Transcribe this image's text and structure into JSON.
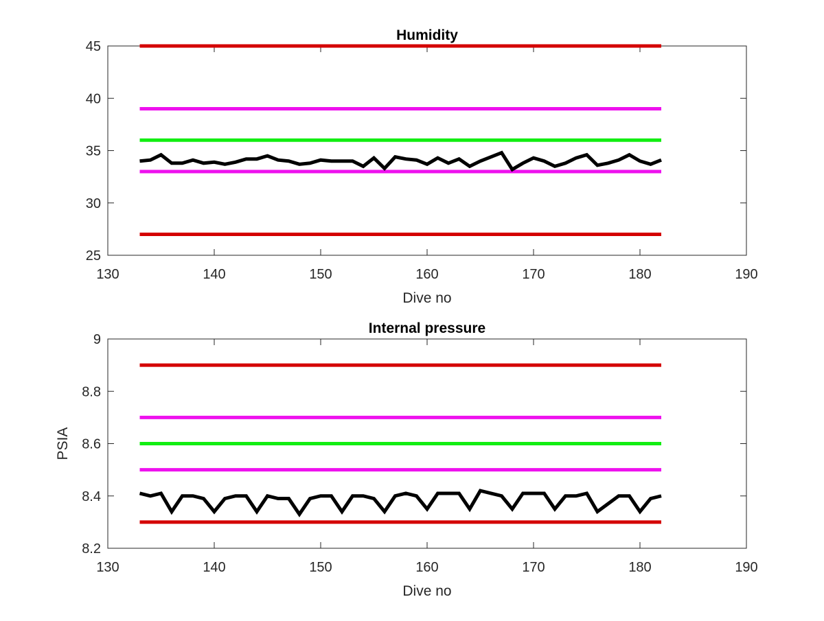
{
  "chart_data": [
    {
      "type": "line",
      "title": "Humidity",
      "xlabel": "Dive no",
      "ylabel": "",
      "xlim": [
        130,
        190
      ],
      "ylim": [
        25,
        45
      ],
      "xticks": [
        130,
        140,
        150,
        160,
        170,
        180,
        190
      ],
      "yticks": [
        25,
        30,
        35,
        40,
        45
      ],
      "grid": false,
      "thresholds": [
        {
          "value": 45,
          "color": "#d40000",
          "x_range": [
            133,
            182
          ]
        },
        {
          "value": 39,
          "color": "#ee11ee",
          "x_range": [
            133,
            182
          ]
        },
        {
          "value": 36,
          "color": "#11ee11",
          "x_range": [
            133,
            182
          ]
        },
        {
          "value": 33,
          "color": "#ee11ee",
          "x_range": [
            133,
            182
          ]
        },
        {
          "value": 27,
          "color": "#d40000",
          "x_range": [
            133,
            182
          ]
        }
      ],
      "series": [
        {
          "color": "#000000",
          "x": [
            133,
            134,
            135,
            136,
            137,
            138,
            139,
            140,
            141,
            142,
            143,
            144,
            145,
            146,
            147,
            148,
            149,
            150,
            151,
            152,
            153,
            154,
            155,
            156,
            157,
            158,
            159,
            160,
            161,
            162,
            163,
            164,
            165,
            166,
            167,
            168,
            169,
            170,
            171,
            172,
            173,
            174,
            175,
            176,
            177,
            178,
            179,
            180,
            181,
            182
          ],
          "y": [
            34.0,
            34.1,
            34.6,
            33.8,
            33.8,
            34.1,
            33.8,
            33.9,
            33.7,
            33.9,
            34.2,
            34.2,
            34.5,
            34.1,
            34.0,
            33.7,
            33.8,
            34.1,
            34.0,
            34.0,
            34.0,
            33.5,
            34.3,
            33.3,
            34.4,
            34.2,
            34.1,
            33.7,
            34.3,
            33.8,
            34.2,
            33.5,
            34.0,
            34.4,
            34.8,
            33.2,
            33.8,
            34.3,
            34.0,
            33.5,
            33.8,
            34.3,
            34.6,
            33.6,
            33.8,
            34.1,
            34.6,
            34.0,
            33.7,
            34.1
          ]
        }
      ]
    },
    {
      "type": "line",
      "title": "Internal pressure",
      "xlabel": "Dive no",
      "ylabel": "PSIA",
      "xlim": [
        130,
        190
      ],
      "ylim": [
        8.2,
        9
      ],
      "xticks": [
        130,
        140,
        150,
        160,
        170,
        180,
        190
      ],
      "yticks": [
        8.2,
        8.4,
        8.6,
        8.8,
        9
      ],
      "ytick_labels": [
        "8.2",
        "8.4",
        "8.6",
        "8.8",
        "9"
      ],
      "grid": false,
      "thresholds": [
        {
          "value": 8.9,
          "color": "#d40000",
          "x_range": [
            133,
            182
          ]
        },
        {
          "value": 8.7,
          "color": "#ee11ee",
          "x_range": [
            133,
            182
          ]
        },
        {
          "value": 8.6,
          "color": "#11ee11",
          "x_range": [
            133,
            182
          ]
        },
        {
          "value": 8.5,
          "color": "#ee11ee",
          "x_range": [
            133,
            182
          ]
        },
        {
          "value": 8.3,
          "color": "#d40000",
          "x_range": [
            133,
            182
          ]
        }
      ],
      "series": [
        {
          "color": "#000000",
          "x": [
            133,
            134,
            135,
            136,
            137,
            138,
            139,
            140,
            141,
            142,
            143,
            144,
            145,
            146,
            147,
            148,
            149,
            150,
            151,
            152,
            153,
            154,
            155,
            156,
            157,
            158,
            159,
            160,
            161,
            162,
            163,
            164,
            165,
            166,
            167,
            168,
            169,
            170,
            171,
            172,
            173,
            174,
            175,
            176,
            177,
            178,
            179,
            180,
            181,
            182
          ],
          "y": [
            8.41,
            8.4,
            8.41,
            8.34,
            8.4,
            8.4,
            8.39,
            8.34,
            8.39,
            8.4,
            8.4,
            8.34,
            8.4,
            8.39,
            8.39,
            8.33,
            8.39,
            8.4,
            8.4,
            8.34,
            8.4,
            8.4,
            8.39,
            8.34,
            8.4,
            8.41,
            8.4,
            8.35,
            8.41,
            8.41,
            8.41,
            8.35,
            8.42,
            8.41,
            8.4,
            8.35,
            8.41,
            8.41,
            8.41,
            8.35,
            8.4,
            8.4,
            8.41,
            8.34,
            8.37,
            8.4,
            8.4,
            8.34,
            8.39,
            8.4
          ]
        }
      ]
    }
  ]
}
